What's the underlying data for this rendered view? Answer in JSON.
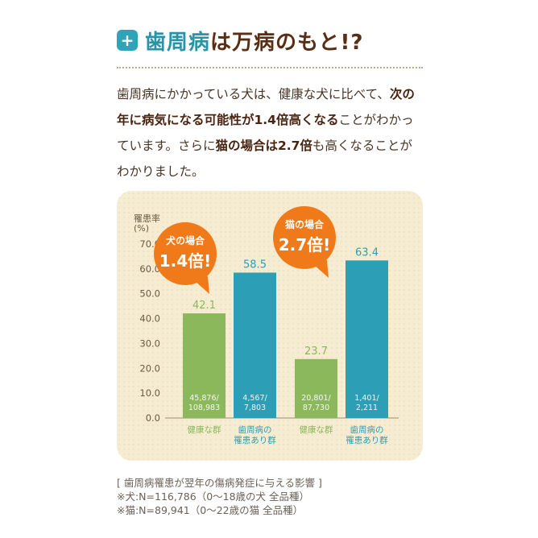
{
  "header": {
    "title_highlight": "歯周病",
    "title_rest": "は万病のもと!?",
    "icon": "plus-icon"
  },
  "intro": {
    "p1": "歯周病にかかっている犬は、健康な犬に比べて、",
    "b1": "次の年に病気になる可能性が1.4倍高くなる",
    "p2": "ことがわかっています。さらに",
    "b2": "猫の場合は2.7倍",
    "p3": "も高くなることがわかりました。"
  },
  "colors": {
    "green": "#8ab85a",
    "blue": "#2c9eb5",
    "orange": "#f07a1a",
    "title_teal": "#2a93a8",
    "title_brown": "#5a2d15"
  },
  "chart_data": {
    "type": "bar",
    "ylabel": "罹患率\n(%)",
    "ylim": [
      0,
      70
    ],
    "yticks": [
      "0.0",
      "10.0",
      "20.0",
      "30.0",
      "40.0",
      "50.0",
      "60.0",
      "70.0"
    ],
    "categories": [
      "健康な群",
      "歯周病の\n罹患あり群",
      "健康な群",
      "歯周病の\n罹患あり群"
    ],
    "values": [
      42.1,
      58.5,
      23.7,
      63.4
    ],
    "value_labels": [
      "42.1",
      "58.5",
      "23.7",
      "63.4"
    ],
    "counts": [
      "45,876/\n108,983",
      "4,567/\n7,803",
      "20,801/\n87,730",
      "1,401/\n2,211"
    ],
    "bar_colors": [
      "green",
      "blue",
      "green",
      "blue"
    ],
    "callouts": [
      {
        "head": "犬の場合",
        "value": "1.4倍!"
      },
      {
        "head": "猫の場合",
        "value": "2.7倍!"
      }
    ]
  },
  "caption": {
    "line1": "[ 歯周病罹患が翌年の傷病発症に与える影響 ]",
    "line2": "※犬:N=116,786（0〜18歳の犬 全品種）",
    "line3": "※猫:N=89,941（0〜22歳の猫 全品種）"
  }
}
